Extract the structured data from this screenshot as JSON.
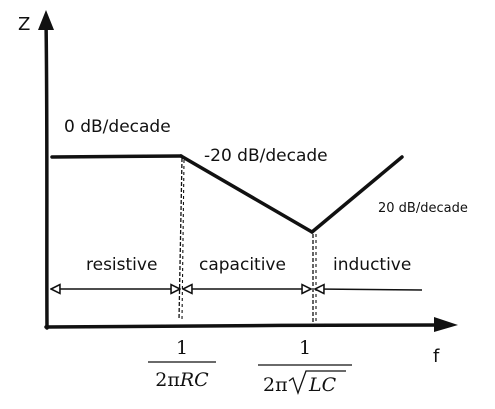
{
  "axes": {
    "y_label": "Z",
    "x_label": "f"
  },
  "slopes": {
    "flat": "0 dB/decade",
    "falling": "-20 dB/decade",
    "rising": "20 dB/decade"
  },
  "regions": {
    "resistive": "resistive",
    "capacitive": "capacitive",
    "inductive": "inductive"
  },
  "breakpoints": {
    "rc": {
      "numerator": "1",
      "denominator_prefix": "2π",
      "denominator_vars": "RC"
    },
    "lc": {
      "numerator": "1",
      "denominator_prefix": "2π",
      "denominator_vars": "LC"
    }
  },
  "colors": {
    "ink": "#111111",
    "background": "#ffffff"
  }
}
